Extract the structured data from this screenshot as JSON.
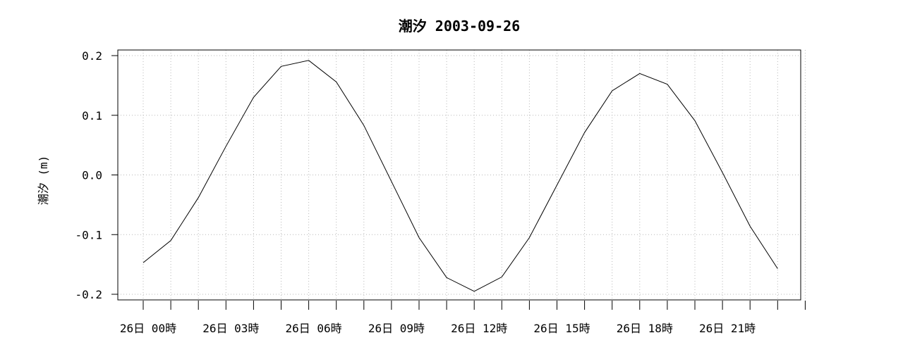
{
  "chart_data": {
    "type": "line",
    "title": "潮汐 2003-09-26",
    "xlabel": "",
    "ylabel": "潮汐 (m)",
    "ylim": [
      -0.2,
      0.2
    ],
    "yticks": [
      "-0.2",
      "-0.1",
      "0.0",
      "0.1",
      "0.2"
    ],
    "xtick_labels": [
      "26日 00時",
      "26日 03時",
      "26日 06時",
      "26日 09時",
      "26日 12時",
      "26日 15時",
      "26日 18時",
      "26日 21時"
    ],
    "grid": true,
    "x_hours": [
      0,
      1,
      2,
      3,
      4,
      5,
      6,
      7,
      8,
      9,
      10,
      11,
      12,
      13,
      14,
      15,
      16,
      17,
      18,
      19,
      20,
      21,
      22,
      23,
      24
    ],
    "series": [
      {
        "values": [
          -0.147,
          -0.11,
          -0.038,
          0.048,
          0.13,
          0.182,
          0.192,
          0.156,
          0.083,
          -0.011,
          -0.105,
          -0.172,
          -0.195,
          -0.171,
          -0.105,
          -0.017,
          0.071,
          0.141,
          0.17,
          0.152,
          0.091,
          0.004,
          -0.086,
          -0.157,
          null
        ],
        "color": "#000000"
      }
    ]
  }
}
